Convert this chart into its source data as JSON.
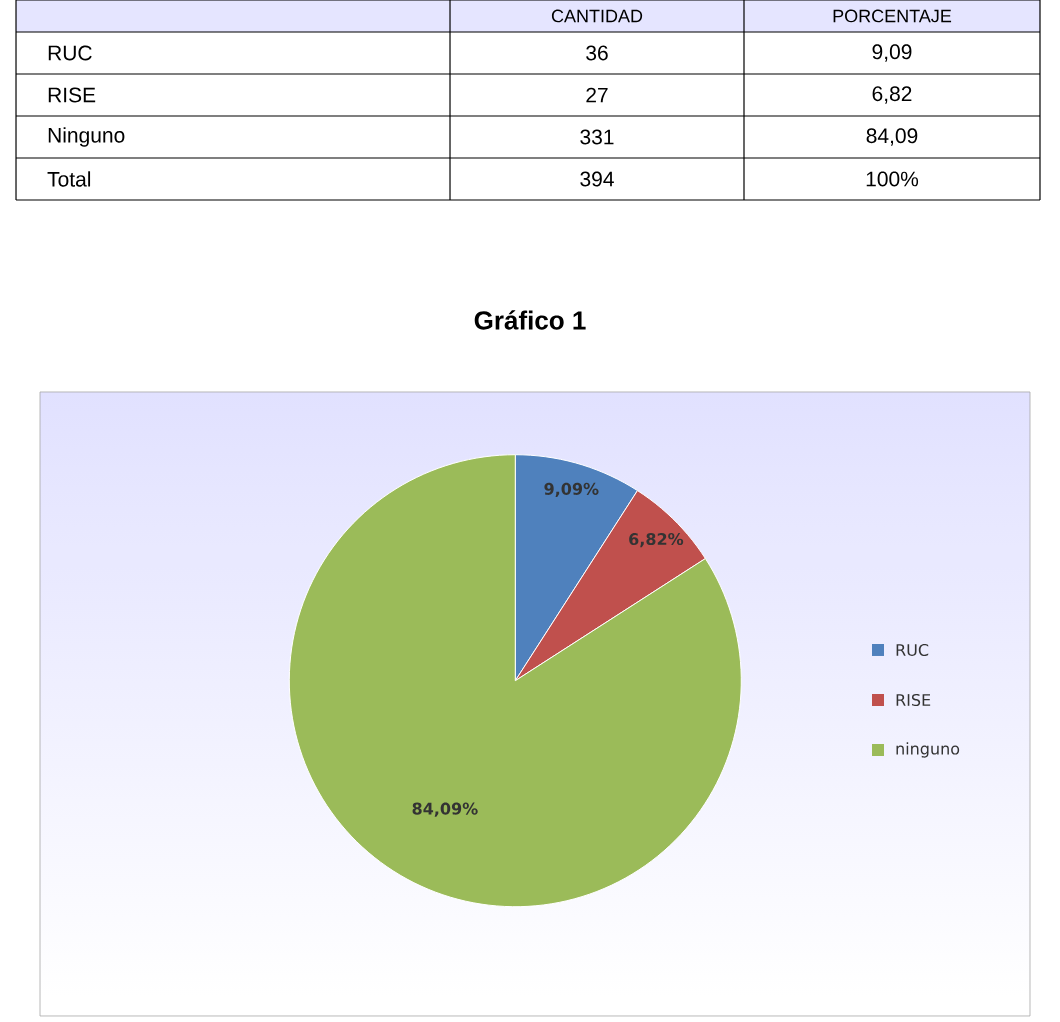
{
  "chart_data": {
    "type": "pie",
    "title": "Gráfico 1",
    "categories": [
      "RUC",
      "RISE",
      "ninguno"
    ],
    "values": [
      9.09,
      6.82,
      84.09
    ],
    "colors": [
      "#4f81bd",
      "#c0504d",
      "#9bbb59"
    ],
    "value_labels": [
      "9,09%",
      "6,82%",
      "84,09%"
    ],
    "legend": "right",
    "annotations": [
      "CANTIDAD",
      "PORCENTAJE",
      "RUC",
      "36",
      "9,09",
      "RISE",
      "27",
      "6,82",
      "Ninguno",
      "331",
      "84,09",
      "Total",
      "394",
      "100%"
    ]
  }
}
